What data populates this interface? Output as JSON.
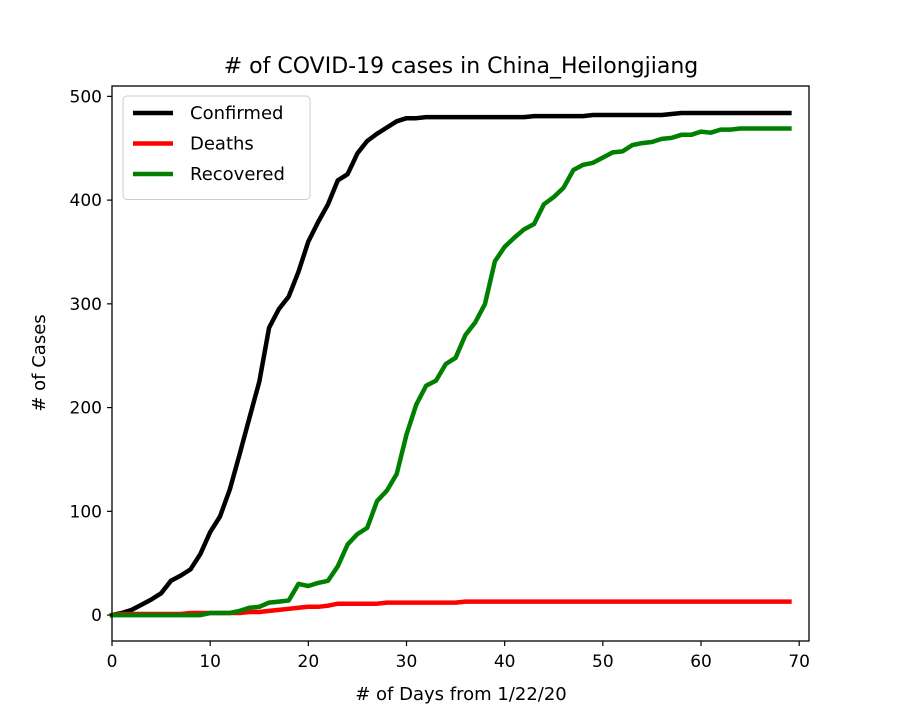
{
  "chart_data": {
    "type": "line",
    "title": "# of COVID-19 cases in China_Heilongjiang",
    "xlabel": "# of Days from 1/22/20",
    "ylabel": "# of Cases",
    "xlim": [
      0,
      71
    ],
    "ylim": [
      -25,
      510
    ],
    "xticks": [
      0,
      10,
      20,
      30,
      40,
      50,
      60,
      70
    ],
    "yticks": [
      0,
      100,
      200,
      300,
      400,
      500
    ],
    "grid": false,
    "legend_position": "top-left",
    "series": [
      {
        "name": "Confirmed",
        "color": "#000000",
        "x": [
          0,
          1,
          2,
          3,
          4,
          5,
          6,
          7,
          8,
          9,
          10,
          11,
          12,
          13,
          14,
          15,
          16,
          17,
          18,
          19,
          20,
          21,
          22,
          23,
          24,
          25,
          26,
          27,
          28,
          29,
          30,
          31,
          32,
          33,
          34,
          35,
          36,
          37,
          38,
          39,
          40,
          41,
          42,
          43,
          44,
          45,
          46,
          47,
          48,
          49,
          50,
          51,
          52,
          53,
          54,
          55,
          56,
          57,
          58,
          59,
          60,
          61,
          62,
          63,
          64,
          65,
          66,
          67,
          68,
          69
        ],
        "y": [
          0,
          2,
          5,
          10,
          15,
          21,
          33,
          38,
          44,
          59,
          80,
          95,
          121,
          155,
          190,
          225,
          277,
          295,
          307,
          331,
          360,
          379,
          396,
          419,
          425,
          445,
          457,
          464,
          470,
          476,
          479,
          479,
          480,
          480,
          480,
          480,
          480,
          480,
          480,
          480,
          480,
          480,
          480,
          481,
          481,
          481,
          481,
          481,
          481,
          482,
          482,
          482,
          482,
          482,
          482,
          482,
          482,
          483,
          484,
          484,
          484,
          484,
          484,
          484,
          484,
          484,
          484,
          484,
          484,
          484
        ]
      },
      {
        "name": "Deaths",
        "color": "#ff0000",
        "x": [
          0,
          1,
          2,
          3,
          4,
          5,
          6,
          7,
          8,
          9,
          10,
          11,
          12,
          13,
          14,
          15,
          16,
          17,
          18,
          19,
          20,
          21,
          22,
          23,
          24,
          25,
          26,
          27,
          28,
          29,
          30,
          31,
          32,
          33,
          34,
          35,
          36,
          37,
          38,
          39,
          40,
          41,
          42,
          43,
          44,
          45,
          46,
          47,
          48,
          49,
          50,
          51,
          52,
          53,
          54,
          55,
          56,
          57,
          58,
          59,
          60,
          61,
          62,
          63,
          64,
          65,
          66,
          67,
          68,
          69
        ],
        "y": [
          0,
          1,
          1,
          1,
          1,
          1,
          1,
          1,
          2,
          2,
          2,
          2,
          2,
          2,
          3,
          3,
          4,
          5,
          6,
          7,
          8,
          8,
          9,
          11,
          11,
          11,
          11,
          11,
          12,
          12,
          12,
          12,
          12,
          12,
          12,
          12,
          13,
          13,
          13,
          13,
          13,
          13,
          13,
          13,
          13,
          13,
          13,
          13,
          13,
          13,
          13,
          13,
          13,
          13,
          13,
          13,
          13,
          13,
          13,
          13,
          13,
          13,
          13,
          13,
          13,
          13,
          13,
          13,
          13,
          13
        ]
      },
      {
        "name": "Recovered",
        "color": "#008000",
        "x": [
          0,
          1,
          2,
          3,
          4,
          5,
          6,
          7,
          8,
          9,
          10,
          11,
          12,
          13,
          14,
          15,
          16,
          17,
          18,
          19,
          20,
          21,
          22,
          23,
          24,
          25,
          26,
          27,
          28,
          29,
          30,
          31,
          32,
          33,
          34,
          35,
          36,
          37,
          38,
          39,
          40,
          41,
          42,
          43,
          44,
          45,
          46,
          47,
          48,
          49,
          50,
          51,
          52,
          53,
          54,
          55,
          56,
          57,
          58,
          59,
          60,
          61,
          62,
          63,
          64,
          65,
          66,
          67,
          68,
          69
        ],
        "y": [
          0,
          0,
          0,
          0,
          0,
          0,
          0,
          0,
          0,
          0,
          2,
          2,
          2,
          4,
          7,
          8,
          12,
          13,
          14,
          30,
          28,
          31,
          33,
          47,
          68,
          78,
          84,
          110,
          120,
          136,
          174,
          203,
          221,
          226,
          242,
          248,
          270,
          282,
          300,
          341,
          355,
          364,
          372,
          377,
          396,
          403,
          412,
          429,
          434,
          436,
          441,
          446,
          447,
          453,
          455,
          456,
          459,
          460,
          463,
          463,
          466,
          465,
          468,
          468,
          469,
          469,
          469,
          469,
          469,
          469
        ]
      }
    ]
  }
}
